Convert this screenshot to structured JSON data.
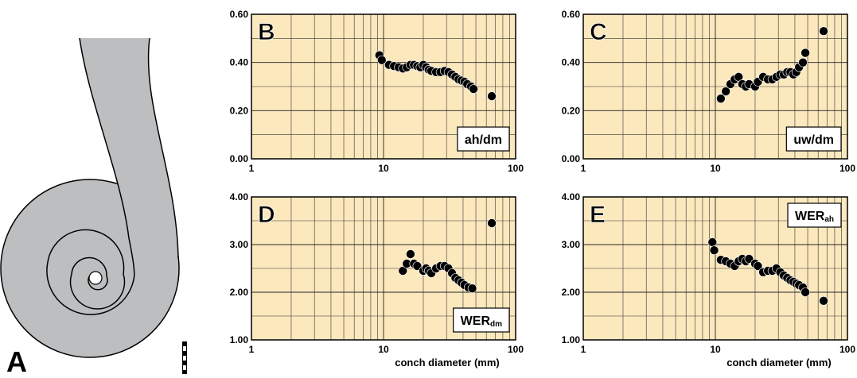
{
  "panel_a": {
    "label": "A"
  },
  "chart_data": [
    {
      "type": "scatter",
      "panel": "B",
      "annotation": "ah/dm",
      "annotation_loc": "lower right",
      "log_x": true,
      "grid": true,
      "color": "#000000",
      "background": "#fce8bd",
      "xlim": [
        1,
        100
      ],
      "xticks": [
        1,
        10,
        100
      ],
      "ylim": [
        0,
        0.6
      ],
      "yticks": [
        {
          "value": 0,
          "label": "0.00"
        },
        {
          "value": 0.2,
          "label": "0.20"
        },
        {
          "value": 0.4,
          "label": "0.40"
        },
        {
          "value": 0.6,
          "label": "0.60"
        }
      ],
      "x": [
        9.3,
        9.7,
        11,
        12,
        13,
        14,
        15,
        16,
        17,
        18,
        19,
        20,
        21,
        22,
        23,
        25,
        27,
        29,
        31,
        33,
        35,
        37,
        39,
        41,
        43,
        46,
        48,
        66
      ],
      "values": [
        0.43,
        0.41,
        0.39,
        0.385,
        0.38,
        0.375,
        0.38,
        0.39,
        0.39,
        0.385,
        0.38,
        0.39,
        0.38,
        0.37,
        0.365,
        0.36,
        0.36,
        0.365,
        0.36,
        0.35,
        0.34,
        0.33,
        0.325,
        0.32,
        0.31,
        0.3,
        0.29,
        0.26
      ]
    },
    {
      "type": "scatter",
      "panel": "C",
      "annotation": "uw/dm",
      "annotation_loc": "lower right",
      "log_x": true,
      "grid": true,
      "color": "#000000",
      "background": "#fce8bd",
      "xlim": [
        1,
        100
      ],
      "xticks": [
        1,
        10,
        100
      ],
      "ylim": [
        0,
        0.6
      ],
      "yticks": [
        {
          "value": 0,
          "label": "0.00"
        },
        {
          "value": 0.2,
          "label": "0.20"
        },
        {
          "value": 0.4,
          "label": "0.40"
        },
        {
          "value": 0.6,
          "label": "0.60"
        }
      ],
      "x": [
        11,
        12,
        13,
        14,
        15,
        16,
        17,
        18,
        20,
        21,
        23,
        25,
        27,
        29,
        31,
        33,
        35,
        37,
        39,
        41,
        43,
        46,
        48,
        66
      ],
      "values": [
        0.25,
        0.28,
        0.31,
        0.33,
        0.34,
        0.31,
        0.3,
        0.31,
        0.3,
        0.32,
        0.34,
        0.33,
        0.33,
        0.34,
        0.35,
        0.35,
        0.36,
        0.36,
        0.35,
        0.36,
        0.38,
        0.4,
        0.44,
        0.53
      ]
    },
    {
      "type": "scatter",
      "panel": "D",
      "annotation": "WER",
      "annotation_sub": "dm",
      "annotation_loc": "lower right",
      "xlabel": "conch diameter (mm)",
      "log_x": true,
      "grid": true,
      "color": "#000000",
      "background": "#fce8bd",
      "xlim": [
        1,
        100
      ],
      "xticks": [
        1,
        10,
        100
      ],
      "ylim": [
        1,
        4
      ],
      "yticks": [
        {
          "value": 1,
          "label": "1.00"
        },
        {
          "value": 2,
          "label": "2.00"
        },
        {
          "value": 3,
          "label": "3.00"
        },
        {
          "value": 4,
          "label": "4.00"
        }
      ],
      "x": [
        14,
        15,
        16,
        17,
        18,
        20,
        21,
        22,
        23,
        25,
        27,
        29,
        31,
        33,
        35,
        37,
        39,
        41,
        44,
        47,
        66
      ],
      "values": [
        2.45,
        2.6,
        2.8,
        2.6,
        2.55,
        2.45,
        2.5,
        2.45,
        2.4,
        2.5,
        2.55,
        2.55,
        2.5,
        2.4,
        2.3,
        2.25,
        2.2,
        2.15,
        2.1,
        2.08,
        3.45
      ]
    },
    {
      "type": "scatter",
      "panel": "E",
      "annotation": "WER",
      "annotation_sub": "ah",
      "annotation_loc": "upper right",
      "xlabel": "conch diameter (mm)",
      "log_x": true,
      "grid": true,
      "color": "#000000",
      "background": "#fce8bd",
      "xlim": [
        1,
        100
      ],
      "xticks": [
        1,
        10,
        100
      ],
      "ylim": [
        1,
        4
      ],
      "yticks": [
        {
          "value": 1,
          "label": "1.00"
        },
        {
          "value": 2,
          "label": "2.00"
        },
        {
          "value": 3,
          "label": "3.00"
        },
        {
          "value": 4,
          "label": "4.00"
        }
      ],
      "x": [
        9.5,
        9.8,
        11,
        12,
        13,
        14,
        15,
        16,
        17,
        18,
        20,
        21,
        23,
        25,
        27,
        29,
        31,
        33,
        35,
        37,
        39,
        41,
        43,
        46,
        48,
        66
      ],
      "values": [
        3.05,
        2.88,
        2.68,
        2.65,
        2.6,
        2.55,
        2.65,
        2.7,
        2.65,
        2.7,
        2.6,
        2.55,
        2.42,
        2.45,
        2.45,
        2.5,
        2.42,
        2.35,
        2.3,
        2.25,
        2.22,
        2.18,
        2.15,
        2.1,
        2.0,
        1.82
      ]
    }
  ]
}
